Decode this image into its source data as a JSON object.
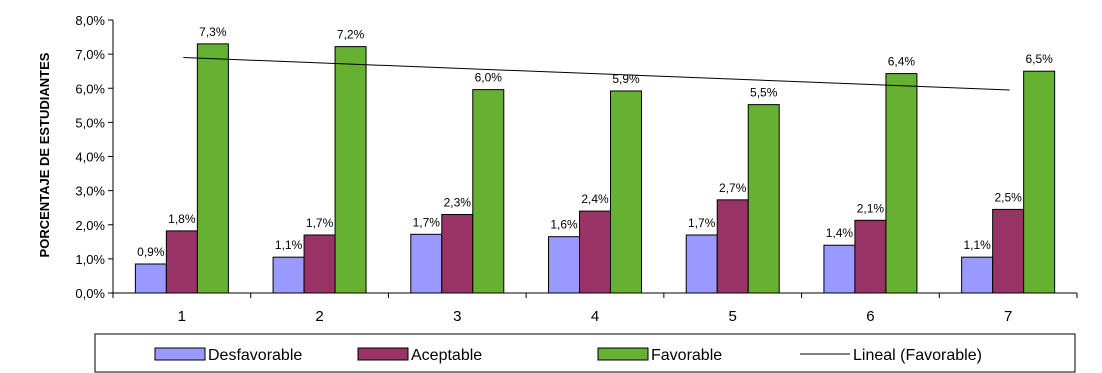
{
  "chart_data": {
    "type": "bar",
    "ylabel": "PORCENTAJE DE ESTUDIANTES",
    "ylim": [
      0,
      8
    ],
    "yticks": [
      "0,0%",
      "1,0%",
      "2,0%",
      "3,0%",
      "4,0%",
      "5,0%",
      "6,0%",
      "7,0%",
      "8,0%"
    ],
    "categories": [
      "1",
      "2",
      "3",
      "4",
      "5",
      "6",
      "7"
    ],
    "series": [
      {
        "name": "Desfavorable",
        "color": "#9999ff",
        "values": [
          0.85,
          1.05,
          1.72,
          1.65,
          1.7,
          1.4,
          1.05
        ],
        "labels": [
          "0,9%",
          "1,1%",
          "1,7%",
          "1,6%",
          "1,7%",
          "1,4%",
          "1,1%"
        ]
      },
      {
        "name": "Aceptable",
        "color": "#993366",
        "values": [
          1.82,
          1.7,
          2.3,
          2.4,
          2.73,
          2.13,
          2.45
        ],
        "labels": [
          "1,8%",
          "1,7%",
          "2,3%",
          "2,4%",
          "2,7%",
          "2,1%",
          "2,5%"
        ]
      },
      {
        "name": "Favorable",
        "color": "#66b032",
        "values": [
          7.3,
          7.22,
          5.96,
          5.92,
          5.52,
          6.43,
          6.5
        ],
        "labels": [
          "7,3%",
          "7,2%",
          "6,0%",
          "5,9%",
          "5,5%",
          "6,4%",
          "6,5%"
        ]
      }
    ],
    "trendline": {
      "name": "Lineal (Favorable)",
      "series": "Favorable",
      "start": 6.9,
      "end": 5.95
    },
    "legend_position": "bottom",
    "grid": false
  }
}
